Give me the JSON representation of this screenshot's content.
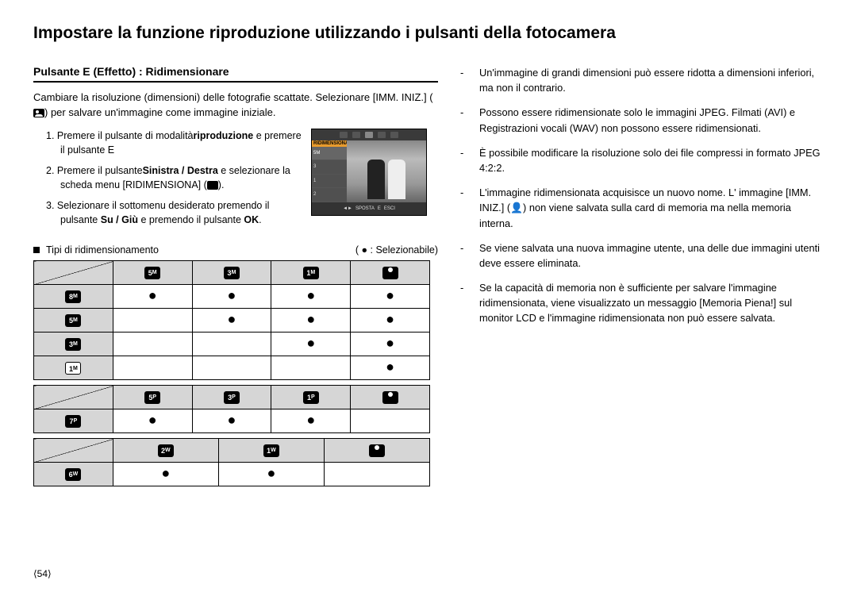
{
  "pageTitle": "Impostare la funzione riproduzione utilizzando i pulsanti della fotocamera",
  "sectionHeading": "Pulsante E (Effetto) : Ridimensionare",
  "intro1": "Cambiare la risoluzione (dimensioni) delle fotografie scattate. Selezionare [IMM. INIZ.] (",
  "intro2": ") per salvare un'immagine come immagine iniziale.",
  "steps": {
    "s1a": "1. Premere il pulsante di modalità",
    "s1b": "riproduzione",
    "s1c": " e premere il pulsante E",
    "s2a": "2. Premere il pulsante",
    "s2b": "Sinistra / Destra",
    "s2c": " e selezionare la scheda menu [RIDIMENSIONA] (",
    "s2d": ").",
    "s3a": "3. Selezionare il sottomenu desiderato premendo il pulsante ",
    "s3b": "Su / Giù",
    "s3c": " e premendo il pulsante ",
    "s3d": "OK",
    "s3e": "."
  },
  "cameraMenu": {
    "header": "RIDIMENSIONA",
    "items": [
      "5M",
      "3",
      "1",
      "2"
    ],
    "footer": {
      "sposta": "SPOSTA",
      "e": "E",
      "esci": "ESCI"
    }
  },
  "tipiLabel": "Tipi di ridimensionamento",
  "selezionabile": "( ● : Selezionabile)",
  "table1": {
    "headers": [
      "5M",
      "3M",
      "1M",
      "user"
    ],
    "rows": [
      {
        "label": "8M",
        "cells": [
          "●",
          "●",
          "●",
          "●"
        ]
      },
      {
        "label": "5M",
        "cells": [
          "",
          "●",
          "●",
          "●"
        ]
      },
      {
        "label": "3M",
        "cells": [
          "",
          "",
          "●",
          "●"
        ]
      },
      {
        "label": "1M",
        "cells": [
          "",
          "",
          "",
          "●"
        ],
        "outline": true
      }
    ]
  },
  "table2": {
    "headers": [
      "5P",
      "3P",
      "1P",
      "user"
    ],
    "rows": [
      {
        "label": "7P",
        "cells": [
          "●",
          "●",
          "●",
          ""
        ]
      }
    ]
  },
  "table3": {
    "headers": [
      "2W",
      "1W",
      "user"
    ],
    "rows": [
      {
        "label": "6W",
        "cells": [
          "●",
          "●",
          ""
        ]
      }
    ]
  },
  "notes": [
    "Un'immagine di grandi dimensioni può essere ridotta a dimensioni inferiori, ma non il contrario.",
    "Possono essere ridimensionate solo le immagini JPEG. Filmati (AVI) e Registrazioni vocali (WAV) non possono essere ridimensionati.",
    "È possibile modificare la risoluzione solo dei file compressi in formato JPEG 4:2:2.",
    "L'immagine ridimensionata acquisisce un nuovo nome. L' immagine [IMM. INIZ.] (👤) non viene salvata sulla card di memoria ma nella memoria interna.",
    "Se viene salvata una nuova immagine utente, una delle due immagini utenti deve essere eliminata.",
    "Se la capacità di memoria non è sufficiente per salvare l'immagine ridimensionata, viene visualizzato un messaggio [Memoria Piena!] sul monitor LCD e l'immagine ridimensionata non può essere salvata."
  ],
  "pageNumber": "⟨54⟩",
  "colors": {
    "headerGray": "#d6d6d6",
    "border": "#000000",
    "orange": "#e89b2d"
  }
}
